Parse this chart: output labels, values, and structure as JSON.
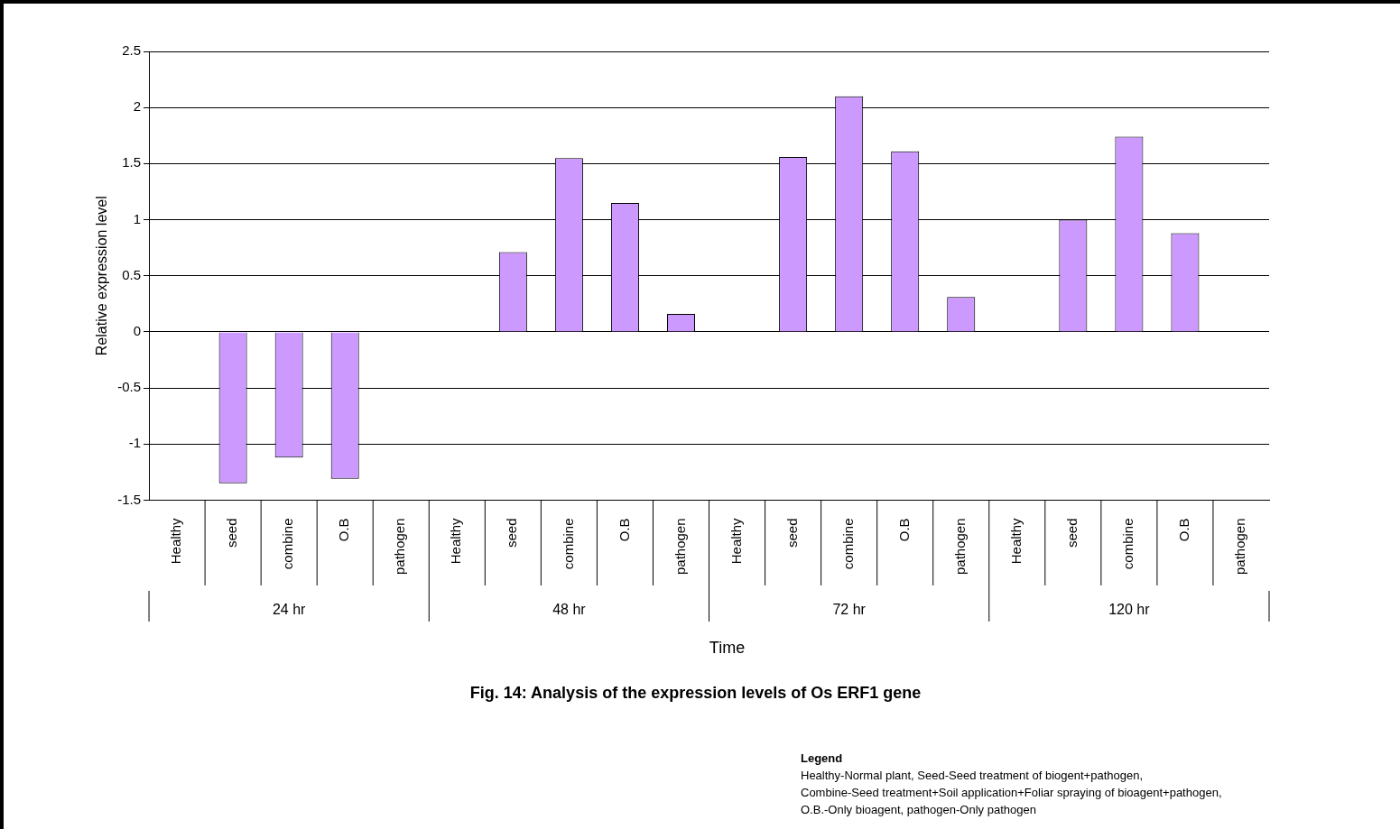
{
  "chart_data": {
    "type": "bar",
    "title": "Fig. 14: Analysis of the expression levels of Os ERF1 gene",
    "xlabel": "Time",
    "ylabel": "Relative expression level",
    "categories": [
      "Healthy",
      "seed",
      "combine",
      "O.B",
      "pathogen",
      "Healthy",
      "seed",
      "combine",
      "O.B",
      "pathogen",
      "Healthy",
      "seed",
      "combine",
      "O.B",
      "pathogen",
      "Healthy",
      "seed",
      "combine",
      "O.B",
      "pathogen"
    ],
    "values": [
      0,
      -1.35,
      -1.12,
      -1.31,
      0,
      0,
      0.71,
      1.55,
      1.15,
      0.16,
      0,
      1.56,
      2.1,
      1.61,
      0.31,
      0,
      1.0,
      1.74,
      0.88,
      0
    ],
    "color": "#cc99ff",
    "ylim": [
      -1.5,
      2.5
    ],
    "yticks": [
      -1.5,
      -1,
      -0.5,
      0,
      0.5,
      1,
      1.5,
      2,
      2.5
    ],
    "grid": "y",
    "annotations": [
      "24 hr",
      "48 hr",
      "72 hr",
      "120 hr",
      "Legend",
      "Healthy-Normal plant, Seed-Seed treatment of biogent+pathogen,",
      "Combine-Seed treatment+Soil application+Foliar spraying of bioagent+pathogen,",
      "O.B.-Only bioagent, pathogen-Only pathogen"
    ]
  }
}
